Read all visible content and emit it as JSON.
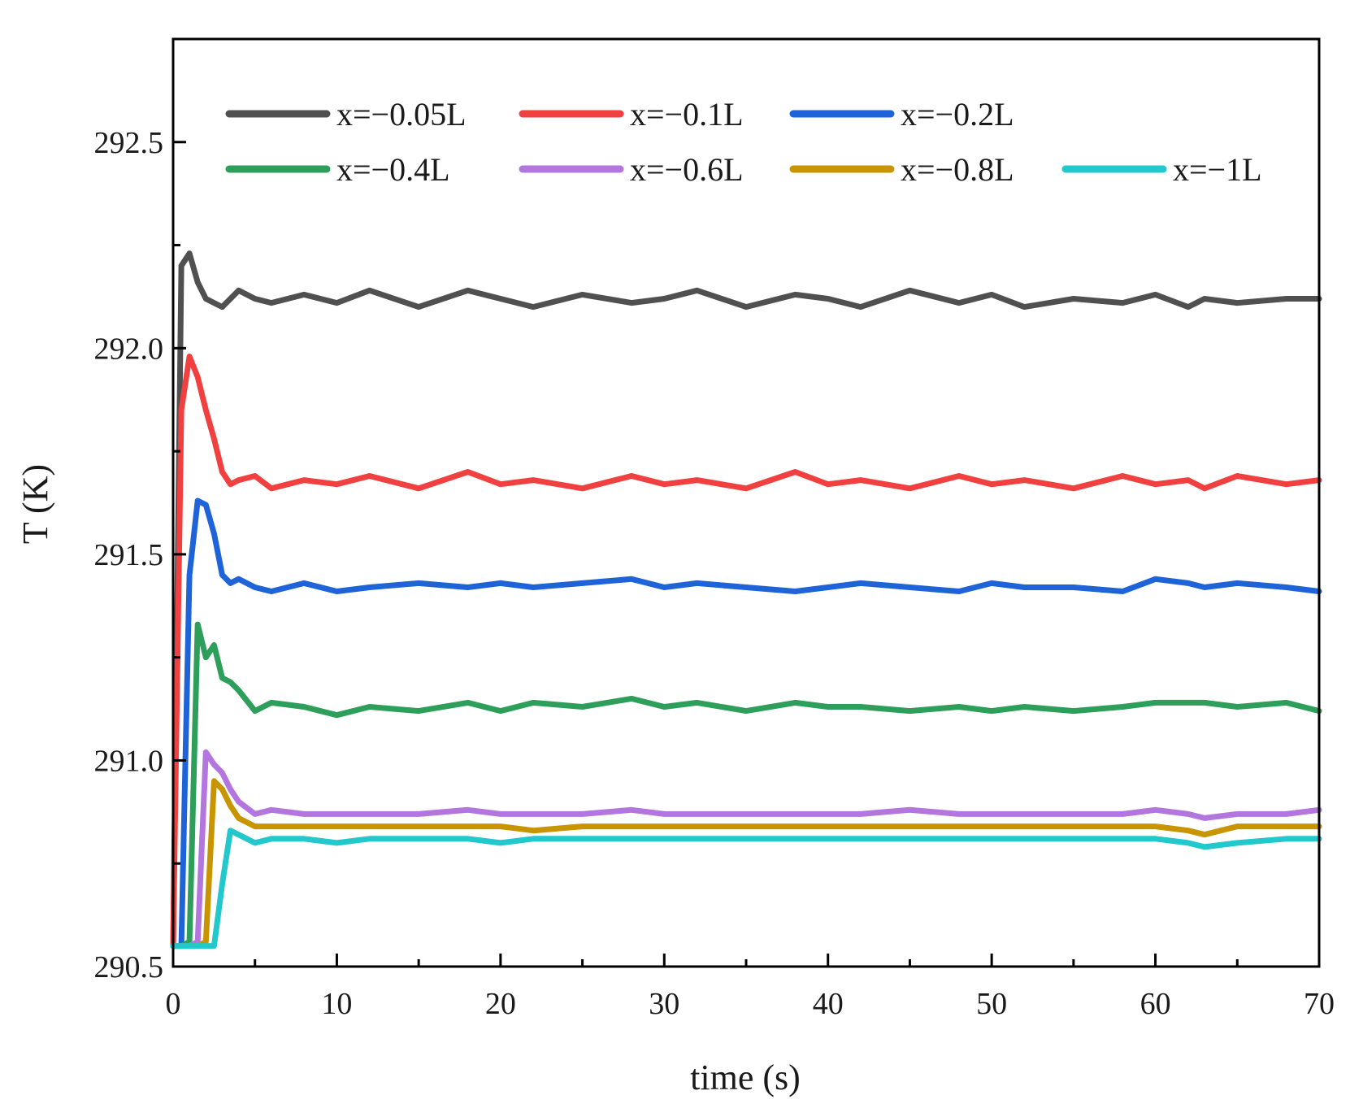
{
  "chart_data": {
    "type": "line",
    "xlabel": "time (s)",
    "ylabel": "T (K)",
    "xlim": [
      0,
      70
    ],
    "ylim": [
      290.5,
      292.75
    ],
    "x_ticks": [
      0,
      10,
      20,
      30,
      40,
      50,
      60,
      70
    ],
    "x_tick_labels": [
      "0",
      "10",
      "20",
      "30",
      "40",
      "50",
      "60",
      "70"
    ],
    "y_ticks": [
      290.5,
      291.0,
      291.5,
      292.0,
      292.5
    ],
    "y_tick_labels": [
      "290.5",
      "291.0",
      "291.5",
      "292.0",
      "292.5"
    ],
    "grid": false,
    "legend_position": "top",
    "x": [
      0,
      0.5,
      1,
      1.5,
      2,
      2.5,
      3,
      3.5,
      4,
      5,
      6,
      8,
      10,
      12,
      15,
      18,
      20,
      22,
      25,
      28,
      30,
      32,
      35,
      38,
      40,
      42,
      45,
      48,
      50,
      52,
      55,
      58,
      60,
      62,
      63,
      65,
      68,
      70
    ],
    "series": [
      {
        "name": "x=−0.05L",
        "color": "#505050",
        "values": [
          290.55,
          292.2,
          292.23,
          292.16,
          292.12,
          292.11,
          292.1,
          292.12,
          292.14,
          292.12,
          292.11,
          292.13,
          292.11,
          292.14,
          292.1,
          292.14,
          292.12,
          292.1,
          292.13,
          292.11,
          292.12,
          292.14,
          292.1,
          292.13,
          292.12,
          292.1,
          292.14,
          292.11,
          292.13,
          292.1,
          292.12,
          292.11,
          292.13,
          292.1,
          292.12,
          292.11,
          292.12,
          292.12
        ]
      },
      {
        "name": "x=−0.1L",
        "color": "#f04040",
        "values": [
          290.55,
          291.85,
          291.98,
          291.93,
          291.85,
          291.78,
          291.7,
          291.67,
          291.68,
          291.69,
          291.66,
          291.68,
          291.67,
          291.69,
          291.66,
          291.7,
          291.67,
          291.68,
          291.66,
          291.69,
          291.67,
          291.68,
          291.66,
          291.7,
          291.67,
          291.68,
          291.66,
          291.69,
          291.67,
          291.68,
          291.66,
          291.69,
          291.67,
          291.68,
          291.66,
          291.69,
          291.67,
          291.68
        ]
      },
      {
        "name": "x=−0.2L",
        "color": "#1f63d8",
        "values": [
          290.55,
          290.55,
          291.45,
          291.63,
          291.62,
          291.55,
          291.45,
          291.43,
          291.44,
          291.42,
          291.41,
          291.43,
          291.41,
          291.42,
          291.43,
          291.42,
          291.43,
          291.42,
          291.43,
          291.44,
          291.42,
          291.43,
          291.42,
          291.41,
          291.42,
          291.43,
          291.42,
          291.41,
          291.43,
          291.42,
          291.42,
          291.41,
          291.44,
          291.43,
          291.42,
          291.43,
          291.42,
          291.41
        ]
      },
      {
        "name": "x=−0.4L",
        "color": "#2e9e5b",
        "values": [
          290.55,
          290.55,
          290.56,
          291.33,
          291.25,
          291.28,
          291.2,
          291.19,
          291.17,
          291.12,
          291.14,
          291.13,
          291.11,
          291.13,
          291.12,
          291.14,
          291.12,
          291.14,
          291.13,
          291.15,
          291.13,
          291.14,
          291.12,
          291.14,
          291.13,
          291.13,
          291.12,
          291.13,
          291.12,
          291.13,
          291.12,
          291.13,
          291.14,
          291.14,
          291.14,
          291.13,
          291.14,
          291.12
        ]
      },
      {
        "name": "x=−0.6L",
        "color": "#b276de",
        "values": [
          290.55,
          290.55,
          290.55,
          290.56,
          291.02,
          290.99,
          290.97,
          290.93,
          290.9,
          290.87,
          290.88,
          290.87,
          290.87,
          290.87,
          290.87,
          290.88,
          290.87,
          290.87,
          290.87,
          290.88,
          290.87,
          290.87,
          290.87,
          290.87,
          290.87,
          290.87,
          290.88,
          290.87,
          290.87,
          290.87,
          290.87,
          290.87,
          290.88,
          290.87,
          290.86,
          290.87,
          290.87,
          290.88
        ]
      },
      {
        "name": "x=−0.8L",
        "color": "#c89500",
        "values": [
          290.55,
          290.55,
          290.55,
          290.55,
          290.56,
          290.95,
          290.93,
          290.89,
          290.86,
          290.84,
          290.84,
          290.84,
          290.84,
          290.84,
          290.84,
          290.84,
          290.84,
          290.83,
          290.84,
          290.84,
          290.84,
          290.84,
          290.84,
          290.84,
          290.84,
          290.84,
          290.84,
          290.84,
          290.84,
          290.84,
          290.84,
          290.84,
          290.84,
          290.83,
          290.82,
          290.84,
          290.84,
          290.84
        ]
      },
      {
        "name": "x=−1L",
        "color": "#22c8cc",
        "values": [
          290.55,
          290.55,
          290.55,
          290.55,
          290.55,
          290.55,
          290.7,
          290.83,
          290.82,
          290.8,
          290.81,
          290.81,
          290.8,
          290.81,
          290.81,
          290.81,
          290.8,
          290.81,
          290.81,
          290.81,
          290.81,
          290.81,
          290.81,
          290.81,
          290.81,
          290.81,
          290.81,
          290.81,
          290.81,
          290.81,
          290.81,
          290.81,
          290.81,
          290.8,
          290.79,
          290.8,
          290.81,
          290.81
        ]
      }
    ]
  }
}
